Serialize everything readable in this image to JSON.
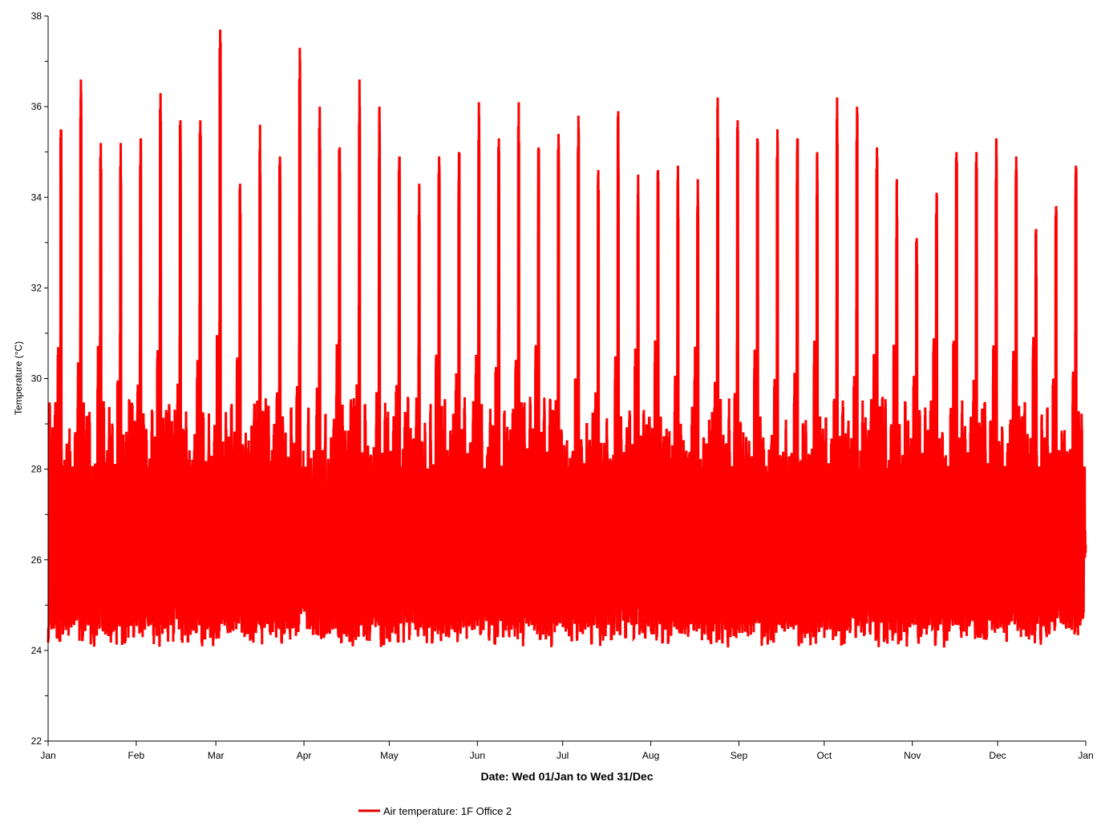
{
  "chart_data": {
    "type": "line",
    "title": "",
    "xlabel": "Date: Wed 01/Jan to Wed 31/Dec",
    "ylabel": "Temperature (°C)",
    "ylim": [
      22,
      38
    ],
    "yticks": [
      "22",
      "24",
      "26",
      "28",
      "30",
      "32",
      "34",
      "36",
      "38"
    ],
    "xlim_days": [
      0,
      365
    ],
    "xticks": [
      {
        "label": "Jan",
        "day": 0
      },
      {
        "label": "Feb",
        "day": 31
      },
      {
        "label": "Mar",
        "day": 59
      },
      {
        "label": "Apr",
        "day": 90
      },
      {
        "label": "May",
        "day": 120
      },
      {
        "label": "Jun",
        "day": 151
      },
      {
        "label": "Jul",
        "day": 181
      },
      {
        "label": "Aug",
        "day": 212
      },
      {
        "label": "Sep",
        "day": 243
      },
      {
        "label": "Oct",
        "day": 273
      },
      {
        "label": "Nov",
        "day": 304
      },
      {
        "label": "Dec",
        "day": 334
      },
      {
        "label": "Jan",
        "day": 365
      }
    ],
    "grid": false,
    "legend": {
      "position": "bottom-center",
      "label": "Air temperature: 1F Office 2"
    },
    "series": [
      {
        "name": "Air temperature: 1F Office 2",
        "color": "#ff0000",
        "resolution": "hourly",
        "typical_daily_min": 24.0,
        "typical_daily_max": 28.8,
        "first_weekly_peak_day": 4,
        "weekly_peak_values": [
          35.5,
          36.6,
          35.2,
          35.2,
          35.3,
          36.3,
          35.7,
          35.7,
          37.7,
          34.3,
          35.6,
          34.9,
          37.3,
          36.0,
          35.1,
          36.6,
          36.0,
          34.9,
          34.3,
          34.9,
          35.0,
          36.1,
          35.3,
          36.1,
          35.1,
          35.4,
          35.8,
          34.6,
          35.9,
          34.5,
          34.6,
          34.7,
          34.4,
          36.2,
          35.7,
          35.3,
          35.5,
          35.3,
          35.0,
          36.2,
          36.0,
          35.1,
          34.4,
          33.1,
          34.1,
          35.0,
          35.0,
          35.3,
          34.9,
          33.3,
          33.8,
          34.7
        ],
        "overall_min": 23.2,
        "overall_max": 37.7
      }
    ]
  }
}
